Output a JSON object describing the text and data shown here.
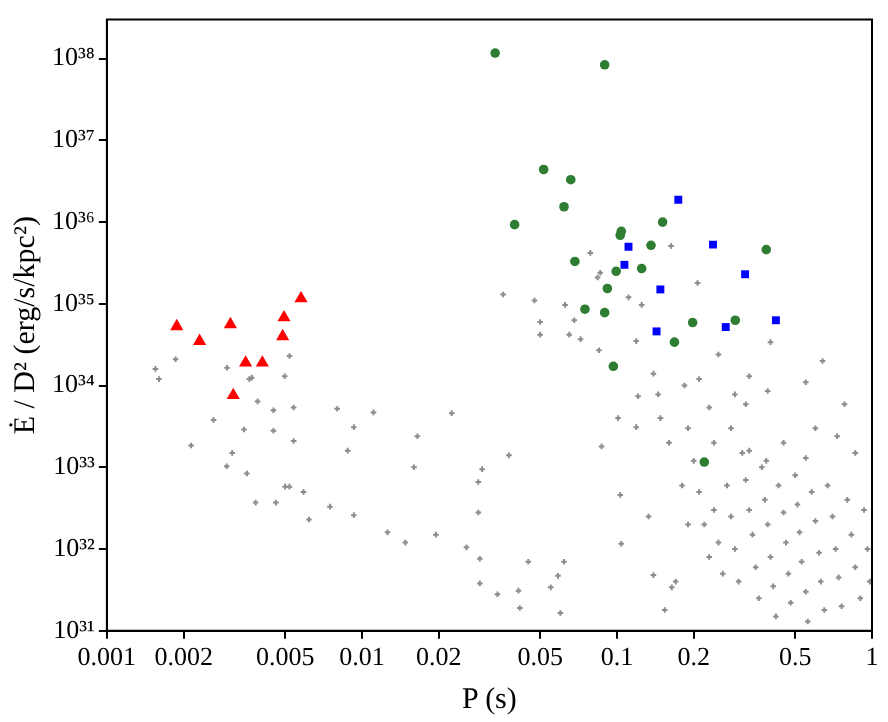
{
  "chart_data": {
    "type": "scatter",
    "xlabel": "P (s)",
    "ylabel": "Ė / D² (erg/s/kpc²)",
    "log": "xy",
    "grid": false,
    "legend": false,
    "xlim": [
      0.001,
      1
    ],
    "xticks": [
      0.001,
      0.002,
      0.005,
      0.01,
      0.02,
      0.05,
      0.1,
      0.2,
      0.5,
      1
    ],
    "ylim": [
      1e+31,
      3e+38
    ],
    "yticks": [
      {
        "value": 1e+31,
        "label": "10³¹"
      },
      {
        "value": 1e+32,
        "label": "10³²"
      },
      {
        "value": 1e+33,
        "label": "10³³"
      },
      {
        "value": 1e+34,
        "label": "10³⁴"
      },
      {
        "value": 1e+35,
        "label": "10³⁵"
      },
      {
        "value": 1e+36,
        "label": "10³⁶"
      },
      {
        "value": 1e+37,
        "label": "10³⁷"
      },
      {
        "value": 1e+38,
        "label": "10³⁸"
      }
    ],
    "series": [
      {
        "color": "#ff0000",
        "marker": "triangle",
        "x": [
          0.00188,
          0.00231,
          0.00305,
          0.0035,
          0.00313,
          0.00407,
          0.00489,
          0.00495,
          0.00577
        ],
        "values": [
          5.3e+34,
          3.5e+34,
          5.6e+34,
          1.9e+34,
          7.6e+33,
          1.9e+34,
          4e+34,
          6.8e+34,
          1.16e+35
        ]
      },
      {
        "color": "#0000ff",
        "marker": "square",
        "x": [
          0.174,
          0.238,
          0.111,
          0.107,
          0.318,
          0.148,
          0.42,
          0.143,
          0.267
        ],
        "values": [
          1.88e+36,
          5.3e+35,
          5e+35,
          3e+35,
          2.3e+35,
          1.5e+35,
          6.3e+34,
          4.6e+34,
          5.2e+34
        ]
      },
      {
        "color": "#2e7d32",
        "marker": "circle",
        "x": [
          0.0333,
          0.0895,
          0.0516,
          0.0659,
          0.062,
          0.0397,
          0.151,
          0.104,
          0.103,
          0.136,
          0.385,
          0.0684,
          0.0993,
          0.125,
          0.0917,
          0.0749,
          0.0895,
          0.291,
          0.198,
          0.168,
          0.0968,
          0.22
        ],
        "values": [
          1.17e+38,
          8.4e+37,
          4.4e+36,
          3.3e+36,
          1.54e+36,
          9.3e+35,
          1e+36,
          7.7e+35,
          6.9e+35,
          5.2e+35,
          4.6e+35,
          3.3e+35,
          2.5e+35,
          2.7e+35,
          1.54e+35,
          8.6e+34,
          7.8e+34,
          6.3e+34,
          5.9e+34,
          3.4e+34,
          1.72e+34,
          1.16e+33
        ]
      },
      {
        "color": "#8c8c8c",
        "marker": "cross",
        "x": [
          0.00155,
          0.0016,
          0.00186,
          0.00214,
          0.00262,
          0.00296,
          0.00295,
          0.0031,
          0.00345,
          0.00354,
          0.00362,
          0.0037,
          0.00383,
          0.0039,
          0.0045,
          0.0046,
          0.0045,
          0.00498,
          0.0052,
          0.0054,
          0.005,
          0.0052,
          0.0059,
          0.0062,
          0.0054,
          0.0075,
          0.008,
          0.0088,
          0.0093,
          0.0093,
          0.0111,
          0.0126,
          0.0148,
          0.0165,
          0.016,
          0.0195,
          0.0225,
          0.0257,
          0.0286,
          0.0296,
          0.0286,
          0.029,
          0.029,
          0.034,
          0.0358,
          0.0377,
          0.0411,
          0.0416,
          0.0449,
          0.0475,
          0.05,
          0.05,
          0.055,
          0.0587,
          0.062,
          0.06,
          0.0626,
          0.065,
          0.068,
          0.072,
          0.0786,
          0.084,
          0.087,
          0.086,
          0.085,
          0.101,
          0.103,
          0.104,
          0.111,
          0.119,
          0.121,
          0.119,
          0.125,
          0.133,
          0.139,
          0.139,
          0.145,
          0.148,
          0.154,
          0.164,
          0.163,
          0.184,
          0.207,
          0.21,
          0.23,
          0.25,
          0.29,
          0.32,
          0.33,
          0.39,
          0.4,
          0.55,
          0.64,
          0.78,
          0.86,
          0.73,
          0.385,
          0.21,
          0.22,
          0.23,
          0.24,
          0.25,
          0.26,
          0.27,
          0.28,
          0.29,
          0.3,
          0.31,
          0.32,
          0.33,
          0.34,
          0.35,
          0.36,
          0.37,
          0.38,
          0.39,
          0.4,
          0.41,
          0.42,
          0.43,
          0.45,
          0.46,
          0.47,
          0.48,
          0.5,
          0.51,
          0.52,
          0.53,
          0.55,
          0.56,
          0.58,
          0.6,
          0.62,
          0.63,
          0.65,
          0.67,
          0.7,
          0.72,
          0.74,
          0.76,
          0.8,
          0.83,
          0.86,
          0.9,
          0.93,
          0.96,
          0.98,
          0.19,
          0.2,
          0.24,
          0.28,
          0.33,
          0.45,
          0.55,
          0.6,
          0.16,
          0.18,
          0.19,
          0.17
        ],
        "values": [
          1.6e+34,
          1.2e+34,
          2.1e+34,
          1.85e+33,
          3.8e+33,
          1.65e+34,
          1.03e+33,
          1.5e+33,
          2.9e+33,
          8.4e+32,
          1.2e+34,
          1.25e+34,
          3.7e+32,
          6.4e+33,
          5e+33,
          3.7e+32,
          2.8e+33,
          1.3e+34,
          2.3e+34,
          5.4e+33,
          5.8e+32,
          5.8e+32,
          5e+32,
          2.3e+32,
          2.1e+33,
          3.3e+32,
          5.2e+33,
          1.6e+33,
          3.1e+33,
          2.6e+32,
          4.7e+33,
          1.6e+32,
          1.2e+32,
          2.4e+33,
          1e+33,
          1.5e+32,
          4.6e+33,
          1.05e+32,
          6.6e+32,
          9.5e+32,
          2.8e+32,
          7.6e+31,
          3.8e+31,
          2.8e+31,
          1.3e+35,
          1.4e+33,
          3.1e+31,
          1.9e+31,
          7e+31,
          1.1e+35,
          6e+34,
          4.2e+34,
          3.4e+31,
          4.7e+31,
          7e+31,
          1.65e+31,
          9.7e+34,
          4.2e+34,
          6.3e+34,
          3.7e+34,
          4.2e+35,
          2.1e+35,
          1.8e+33,
          2.4e+35,
          2.7e+34,
          4e+33,
          4.6e+32,
          1.16e+32,
          1.2e+35,
          3.1e+33,
          7.4e+33,
          3.5e+34,
          9.7e+34,
          2.5e+32,
          1.4e+34,
          4.8e+31,
          7.8e+33,
          4e+33,
          1.8e+31,
          3.4e+31,
          5.1e+35,
          1e+34,
          1.8e+35,
          1.2e+34,
          5.4e+33,
          2.4e+34,
          7.8e+33,
          5.9e+33,
          1.3e+34,
          8.6e+33,
          3.4e+34,
          1.1e+34,
          2e+34,
          5.9e+33,
          1.5e+33,
          2.4e+33,
          1.2e+33,
          5e+32,
          2e+32,
          8e+31,
          3e+32,
          1.2e+32,
          5e+31,
          6e+32,
          2.5e+32,
          1e+32,
          4e+31,
          1.5e+33,
          7e+32,
          3e+32,
          1.5e+32,
          6e+31,
          2.5e+31,
          1e+33,
          4e+32,
          2e+32,
          8e+31,
          3.5e+31,
          1.5e+31,
          6e+32,
          2.8e+32,
          1.2e+32,
          5e+31,
          2.2e+31,
          8e+32,
          3.5e+32,
          1.6e+32,
          7e+31,
          3e+31,
          1.3e+31,
          5e+32,
          2.2e+32,
          9e+31,
          4e+31,
          1.8e+31,
          6e+32,
          2.5e+32,
          1e+32,
          4.5e+31,
          2e+31,
          4e+32,
          1.5e+32,
          6e+31,
          2.5e+31,
          3e+32,
          1e+32,
          4e+31,
          3e+33,
          1.2e+33,
          2e+33,
          3e+33,
          1.6e+33,
          2e+33,
          1.3e+33,
          3e+33,
          2e+33,
          6e+32,
          2e+32,
          4e+31
        ]
      }
    ]
  }
}
